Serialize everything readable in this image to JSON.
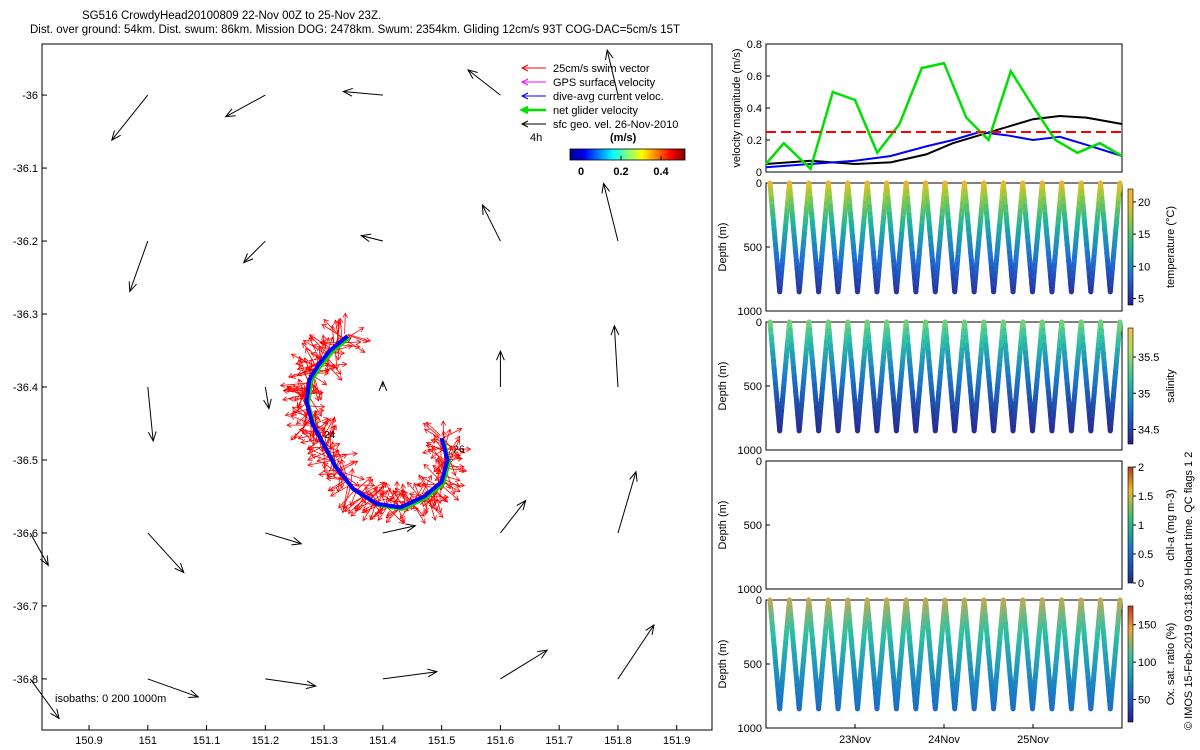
{
  "header": {
    "line1": "SG516 CrowdyHead20100809 22-Nov 00Z to 25-Nov 23Z.",
    "line2": "Dist. over ground: 54km. Dist. swum: 86km. Mission DOG: 2478km. Swum: 2354km. Gliding 12cm/s 93T COG-DAC=5cm/s 15T"
  },
  "legend": {
    "items": [
      {
        "label": "25cm/s swim vector",
        "color": "#ff0000"
      },
      {
        "label": "GPS surface velocity",
        "color": "#ff00ff"
      },
      {
        "label": "dive-avg current veloc.",
        "color": "#0000ff"
      },
      {
        "label": "net glider velocity",
        "color": "#00e000"
      },
      {
        "label": "sfc geo. vel. 26-Nov-2010",
        "color": "#000000"
      }
    ],
    "interval": "4h",
    "unit": "(m/s)",
    "colorbar_ticks": [
      "0",
      "0.2",
      "0.4"
    ]
  },
  "side_label": "© IMOS 15-Feb-2019 03:18:30 Hobart time. QC flags 1  2",
  "chart_data": [
    {
      "type": "scatter",
      "name": "map",
      "x_ticks": [
        "150.9",
        "151",
        "151.1",
        "151.2",
        "151.3",
        "151.4",
        "151.5",
        "151.6",
        "151.7",
        "151.8",
        "151.9"
      ],
      "x_tick_values": [
        150.9,
        151.0,
        151.1,
        151.2,
        151.3,
        151.4,
        151.5,
        151.6,
        151.7,
        151.8,
        151.9
      ],
      "y_ticks": [
        "-36",
        "-36.1",
        "-36.2",
        "-36.3",
        "-36.4",
        "-36.5",
        "-36.6",
        "-36.7",
        "-36.8"
      ],
      "y_tick_values": [
        -36.0,
        -36.1,
        -36.2,
        -36.3,
        -36.4,
        -36.5,
        -36.6,
        -36.7,
        -36.8
      ],
      "xlim": [
        150.82,
        151.96
      ],
      "ylim": [
        -36.87,
        -35.93
      ],
      "isobaths_label": "isobaths: 0   200  1000m",
      "track_labels": [
        {
          "text": "24",
          "lon": 151.3,
          "lat": -36.47
        },
        {
          "text": "26",
          "lon": 151.52,
          "lat": -36.49
        }
      ],
      "track": [
        [
          151.34,
          -36.33
        ],
        [
          151.31,
          -36.35
        ],
        [
          151.29,
          -36.37
        ],
        [
          151.275,
          -36.39
        ],
        [
          151.27,
          -36.42
        ],
        [
          151.28,
          -36.45
        ],
        [
          151.3,
          -36.48
        ],
        [
          151.32,
          -36.51
        ],
        [
          151.35,
          -36.54
        ],
        [
          151.39,
          -36.56
        ],
        [
          151.43,
          -36.565
        ],
        [
          151.47,
          -36.55
        ],
        [
          151.5,
          -36.53
        ],
        [
          151.51,
          -36.5
        ],
        [
          151.5,
          -36.47
        ]
      ],
      "surface_vectors": [
        {
          "lon": 151.0,
          "lat": -36.0,
          "u": -0.2,
          "v": -0.25
        },
        {
          "lon": 151.2,
          "lat": -36.0,
          "u": -0.22,
          "v": -0.12
        },
        {
          "lon": 151.4,
          "lat": -36.0,
          "u": -0.22,
          "v": 0.02
        },
        {
          "lon": 151.6,
          "lat": -36.0,
          "u": -0.18,
          "v": 0.14
        },
        {
          "lon": 151.8,
          "lat": -36.0,
          "u": -0.06,
          "v": 0.25
        },
        {
          "lon": 151.0,
          "lat": -36.2,
          "u": -0.1,
          "v": -0.28
        },
        {
          "lon": 151.2,
          "lat": -36.2,
          "u": -0.12,
          "v": -0.12
        },
        {
          "lon": 151.4,
          "lat": -36.2,
          "u": -0.12,
          "v": 0.03
        },
        {
          "lon": 151.6,
          "lat": -36.2,
          "u": -0.1,
          "v": 0.2
        },
        {
          "lon": 151.8,
          "lat": -36.2,
          "u": -0.08,
          "v": 0.32
        },
        {
          "lon": 151.0,
          "lat": -36.4,
          "u": 0.03,
          "v": -0.3
        },
        {
          "lon": 151.2,
          "lat": -36.4,
          "u": 0.02,
          "v": -0.12
        },
        {
          "lon": 151.4,
          "lat": -36.4,
          "u": 0.0,
          "v": 0.03
        },
        {
          "lon": 151.6,
          "lat": -36.4,
          "u": 0.0,
          "v": 0.2
        },
        {
          "lon": 151.8,
          "lat": -36.4,
          "u": -0.02,
          "v": 0.34
        },
        {
          "lon": 150.8,
          "lat": -36.6,
          "u": 0.1,
          "v": -0.18
        },
        {
          "lon": 151.0,
          "lat": -36.6,
          "u": 0.2,
          "v": -0.22
        },
        {
          "lon": 151.2,
          "lat": -36.6,
          "u": 0.2,
          "v": -0.06
        },
        {
          "lon": 151.4,
          "lat": -36.6,
          "u": 0.18,
          "v": 0.04
        },
        {
          "lon": 151.6,
          "lat": -36.6,
          "u": 0.14,
          "v": 0.18
        },
        {
          "lon": 151.8,
          "lat": -36.6,
          "u": 0.1,
          "v": 0.34
        },
        {
          "lon": 150.8,
          "lat": -36.8,
          "u": 0.16,
          "v": -0.22
        },
        {
          "lon": 151.0,
          "lat": -36.8,
          "u": 0.28,
          "v": -0.1
        },
        {
          "lon": 151.2,
          "lat": -36.8,
          "u": 0.28,
          "v": -0.04
        },
        {
          "lon": 151.4,
          "lat": -36.8,
          "u": 0.3,
          "v": 0.04
        },
        {
          "lon": 151.6,
          "lat": -36.8,
          "u": 0.26,
          "v": 0.16
        },
        {
          "lon": 151.8,
          "lat": -36.8,
          "u": 0.2,
          "v": 0.3
        }
      ]
    },
    {
      "type": "line",
      "name": "velocity",
      "ylabel": "velocity magnitude (m/s)",
      "ylim": [
        0,
        0.8
      ],
      "y_ticks": [
        "0",
        "0.2",
        "0.4",
        "0.6",
        "0.8"
      ],
      "xlim": [
        0,
        4
      ],
      "series": [
        {
          "color": "#000000",
          "x": [
            0,
            0.5,
            1.0,
            1.4,
            1.8,
            2.1,
            2.4,
            2.7,
            3.0,
            3.3,
            3.6,
            4.0
          ],
          "values": [
            0.05,
            0.07,
            0.05,
            0.06,
            0.11,
            0.18,
            0.23,
            0.28,
            0.33,
            0.35,
            0.34,
            0.3
          ]
        },
        {
          "color": "#0000ff",
          "x": [
            0,
            0.5,
            1.0,
            1.4,
            1.8,
            2.1,
            2.4,
            2.7,
            3.0,
            3.3,
            3.6,
            4.0
          ],
          "values": [
            0.03,
            0.05,
            0.07,
            0.1,
            0.16,
            0.2,
            0.25,
            0.23,
            0.2,
            0.22,
            0.17,
            0.1
          ]
        },
        {
          "color": "#00e000",
          "x": [
            0,
            0.2,
            0.5,
            0.75,
            1.0,
            1.25,
            1.5,
            1.75,
            2.0,
            2.25,
            2.5,
            2.75,
            3.0,
            3.25,
            3.5,
            3.75,
            4.0
          ],
          "values": [
            0.05,
            0.18,
            0.02,
            0.5,
            0.45,
            0.12,
            0.3,
            0.65,
            0.68,
            0.34,
            0.2,
            0.63,
            0.41,
            0.2,
            0.12,
            0.18,
            0.1
          ]
        },
        {
          "color": "#ff0000",
          "x": [
            0,
            4
          ],
          "values": [
            0.25,
            0.25
          ],
          "dashed": true
        }
      ]
    },
    {
      "type": "scatter",
      "name": "temperature",
      "ylabel": "Depth (m)",
      "colorbar_label": "temperature (°C)",
      "ylim": [
        1000,
        0
      ],
      "colorbar_ticks": [
        "5",
        "10",
        "15",
        "20"
      ],
      "colorbar_range": [
        4,
        22
      ],
      "dives": 18,
      "max_depth": 850,
      "surface_value": 21,
      "deep_value": 5
    },
    {
      "type": "scatter",
      "name": "salinity",
      "ylabel": "Depth (m)",
      "colorbar_label": "salinity",
      "ylim": [
        1000,
        0
      ],
      "colorbar_ticks": [
        "34.5",
        "35",
        "35.5"
      ],
      "colorbar_range": [
        34.3,
        35.9
      ],
      "dives": 18,
      "max_depth": 850,
      "surface_value": 35.5,
      "deep_value": 34.35
    },
    {
      "type": "scatter",
      "name": "chl-a",
      "ylabel": "Depth (m)",
      "colorbar_label": "chl-a (mg m-3)",
      "ylim": [
        1000,
        0
      ],
      "colorbar_ticks": [
        "0",
        "0.5",
        "1",
        "1.5",
        "2"
      ],
      "colorbar_range": [
        0,
        2
      ],
      "dives": 0
    },
    {
      "type": "scatter",
      "name": "oxygen",
      "ylabel": "Depth (m)",
      "colorbar_label": "Ox. sat. ratio (%)",
      "ylim": [
        1000,
        0
      ],
      "colorbar_ticks": [
        "50",
        "100",
        "150"
      ],
      "colorbar_range": [
        20,
        175
      ],
      "dives": 18,
      "max_depth": 850,
      "surface_value": 140,
      "deep_value": 60,
      "x_ticks": [
        "23Nov",
        "24Nov",
        "25Nov"
      ],
      "x_tick_values": [
        1,
        2,
        3
      ],
      "xlim": [
        0,
        4
      ]
    }
  ]
}
